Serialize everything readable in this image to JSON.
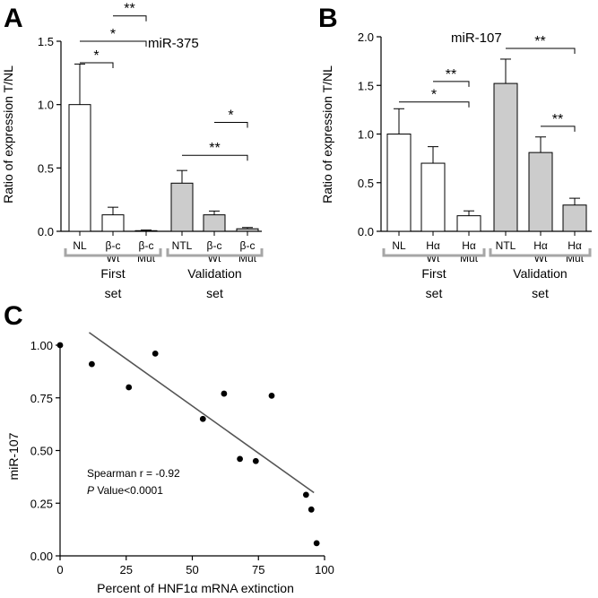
{
  "panels": {
    "A": "A",
    "B": "B",
    "C": "C"
  },
  "colors": {
    "white_bar": "#ffffff",
    "gray_bar": "#cccccc",
    "bracket": "#a6a6a6",
    "regression_line": "#555555"
  },
  "chart_data": [
    {
      "type": "bar",
      "panel": "A",
      "title": "miR-375",
      "ylabel": "Ratio of expression T/NL",
      "ylim": [
        0,
        1.5
      ],
      "yticks": [
        0.0,
        0.5,
        1.0,
        1.5
      ],
      "categories": [
        {
          "line1": "NL",
          "line2": ""
        },
        {
          "line1": "β-c",
          "line2": "Wt"
        },
        {
          "line1": "β-c",
          "line2": "Mut"
        },
        {
          "line1": "NTL",
          "line2": ""
        },
        {
          "line1": "β-c",
          "line2": "Wt"
        },
        {
          "line1": "β-c",
          "line2": "Mut"
        }
      ],
      "values": [
        1.0,
        0.13,
        0.005,
        0.38,
        0.13,
        0.02
      ],
      "errors": [
        0.32,
        0.06,
        0.005,
        0.1,
        0.03,
        0.01
      ],
      "fills": [
        "white",
        "white",
        "white",
        "gray",
        "gray",
        "gray"
      ],
      "groups": [
        {
          "line1": "First",
          "line2": "set",
          "span": [
            0,
            2
          ]
        },
        {
          "line1": "Validation",
          "line2": "set",
          "span": [
            3,
            5
          ]
        }
      ],
      "significance": [
        {
          "from": 0,
          "to": 1,
          "label": "*",
          "y": 1.33
        },
        {
          "from": 0,
          "to": 2,
          "label": "*",
          "y": 1.5
        },
        {
          "from": 1,
          "to": 2,
          "label": "**",
          "y": 1.7
        },
        {
          "from": 3,
          "to": 5,
          "label": "**",
          "y": 0.6
        },
        {
          "from": 4,
          "to": 5,
          "label": "*",
          "y": 0.86
        }
      ]
    },
    {
      "type": "bar",
      "panel": "B",
      "title": "miR-107",
      "ylabel": "Ratio of expression T/NL",
      "ylim": [
        0,
        2.0
      ],
      "yticks": [
        0.0,
        0.5,
        1.0,
        1.5,
        2.0
      ],
      "categories": [
        {
          "line1": "NL",
          "line2": ""
        },
        {
          "line1": "Hα",
          "line2": "Wt"
        },
        {
          "line1": "Hα",
          "line2": "Mut"
        },
        {
          "line1": "NTL",
          "line2": ""
        },
        {
          "line1": "Hα",
          "line2": "Wt"
        },
        {
          "line1": "Hα",
          "line2": "Mut"
        }
      ],
      "values": [
        1.0,
        0.7,
        0.16,
        1.52,
        0.81,
        0.27
      ],
      "errors": [
        0.26,
        0.17,
        0.05,
        0.25,
        0.16,
        0.07
      ],
      "fills": [
        "white",
        "white",
        "white",
        "gray",
        "gray",
        "gray"
      ],
      "groups": [
        {
          "line1": "First",
          "line2": "set",
          "span": [
            0,
            2
          ]
        },
        {
          "line1": "Validation",
          "line2": "set",
          "span": [
            3,
            5
          ]
        }
      ],
      "significance": [
        {
          "from": 0,
          "to": 2,
          "label": "*",
          "y": 1.33
        },
        {
          "from": 1,
          "to": 2,
          "label": "**",
          "y": 1.54
        },
        {
          "from": 3,
          "to": 5,
          "label": "**",
          "y": 1.88
        },
        {
          "from": 4,
          "to": 5,
          "label": "**",
          "y": 1.08
        }
      ]
    },
    {
      "type": "scatter",
      "panel": "C",
      "xlabel": "Percent of HNF1α mRNA extinction",
      "ylabel": "miR-107",
      "xlim": [
        0,
        100
      ],
      "ylim": [
        0,
        1.0
      ],
      "xticks": [
        0,
        25,
        50,
        75,
        100
      ],
      "yticks": [
        "0.00",
        "0.25",
        "0.50",
        "0.75",
        "1.00"
      ],
      "points": [
        {
          "x": 0,
          "y": 1.0
        },
        {
          "x": 12,
          "y": 0.91
        },
        {
          "x": 26,
          "y": 0.8
        },
        {
          "x": 36,
          "y": 0.96
        },
        {
          "x": 54,
          "y": 0.65
        },
        {
          "x": 62,
          "y": 0.77
        },
        {
          "x": 68,
          "y": 0.46
        },
        {
          "x": 74,
          "y": 0.45
        },
        {
          "x": 80,
          "y": 0.76
        },
        {
          "x": 93,
          "y": 0.29
        },
        {
          "x": 95,
          "y": 0.22
        },
        {
          "x": 97,
          "y": 0.06
        }
      ],
      "regression": {
        "x1": 11,
        "y1": 1.06,
        "x2": 96,
        "y2": 0.3
      },
      "annotation_line1": "Spearman r = -0.92",
      "annotation_p": "P",
      "annotation_line2_rest": " Value<0.0001"
    }
  ]
}
